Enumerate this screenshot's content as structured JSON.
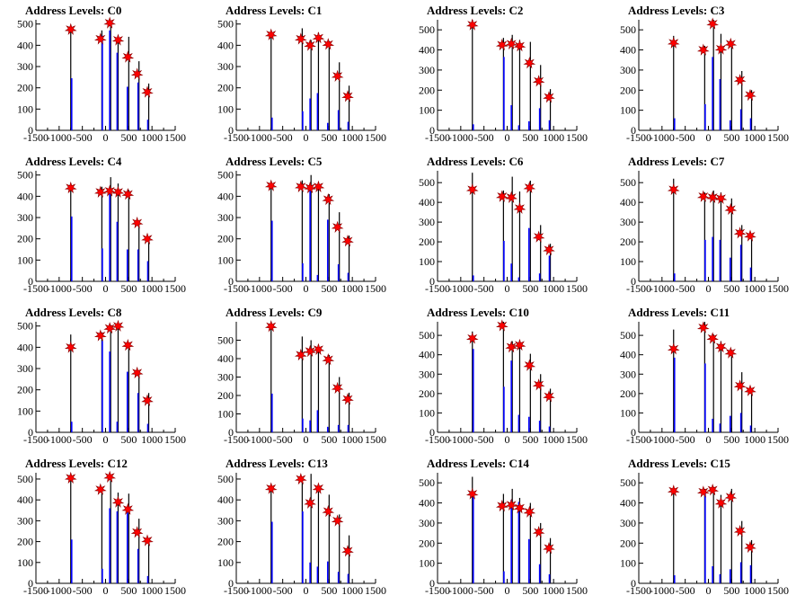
{
  "x_ticks": [
    -1500,
    -1000,
    -500,
    0,
    500,
    1000,
    1500
  ],
  "x_tick_labels": [
    "-1500",
    "-1000",
    "-500",
    "0",
    "500",
    "1000",
    "1500"
  ],
  "colors": {
    "black_hist": "#000000",
    "blue_hist": "#0000ff",
    "marker": "#ff0000",
    "marker_edge": "#8b0000"
  },
  "chart_data": [
    {
      "type": "bar",
      "title": "Address Levels: C0",
      "xlim": [
        -1500,
        1500
      ],
      "ylim": [
        0,
        520
      ],
      "yticks": [
        0,
        100,
        200,
        300,
        400,
        500
      ],
      "black": {
        "x": [
          -750,
          -80,
          110,
          270,
          500,
          720,
          930
        ],
        "values": [
          470,
          470,
          495,
          445,
          440,
          325,
          220
        ]
      },
      "blue": {
        "x": [
          -730,
          -70,
          90,
          250,
          470,
          700,
          910
        ],
        "values": [
          245,
          445,
          470,
          365,
          205,
          225,
          50
        ]
      },
      "peaks": {
        "x": [
          -750,
          -110,
          90,
          270,
          480,
          680,
          900
        ],
        "values": [
          475,
          430,
          505,
          425,
          345,
          265,
          180
        ]
      }
    },
    {
      "type": "bar",
      "title": "Address Levels: C1",
      "xlim": [
        -1500,
        1500
      ],
      "ylim": [
        0,
        520
      ],
      "yticks": [
        0,
        100,
        200,
        300,
        400,
        500
      ],
      "black": {
        "x": [
          -750,
          -80,
          110,
          270,
          500,
          720,
          930
        ],
        "values": [
          460,
          480,
          425,
          460,
          420,
          320,
          210
        ]
      },
      "blue": {
        "x": [
          -730,
          -70,
          90,
          250,
          470,
          700,
          910
        ],
        "values": [
          60,
          90,
          150,
          175,
          35,
          95,
          40
        ]
      },
      "peaks": {
        "x": [
          -750,
          -110,
          90,
          270,
          480,
          680,
          900
        ],
        "values": [
          450,
          430,
          400,
          435,
          405,
          255,
          160
        ]
      }
    },
    {
      "type": "bar",
      "title": "Address Levels: C2",
      "xlim": [
        -1500,
        1500
      ],
      "ylim": [
        0,
        550
      ],
      "yticks": [
        0,
        100,
        200,
        300,
        400,
        500
      ],
      "black": {
        "x": [
          -750,
          -80,
          110,
          270,
          500,
          720,
          930
        ],
        "values": [
          550,
          460,
          475,
          450,
          440,
          325,
          205
        ]
      },
      "blue": {
        "x": [
          -730,
          -70,
          90,
          250,
          470,
          700,
          910
        ],
        "values": [
          30,
          365,
          125,
          25,
          45,
          110,
          50
        ]
      },
      "peaks": {
        "x": [
          -750,
          -110,
          90,
          270,
          480,
          680,
          900
        ],
        "values": [
          525,
          425,
          430,
          420,
          335,
          245,
          165
        ]
      }
    },
    {
      "type": "bar",
      "title": "Address Levels: C3",
      "xlim": [
        -1500,
        1500
      ],
      "ylim": [
        0,
        550
      ],
      "yticks": [
        0,
        100,
        200,
        300,
        400,
        500
      ],
      "black": {
        "x": [
          -750,
          -80,
          110,
          270,
          500,
          720,
          930
        ],
        "values": [
          470,
          420,
          550,
          480,
          440,
          295,
          200
        ]
      },
      "blue": {
        "x": [
          -730,
          -70,
          90,
          250,
          470,
          700,
          910
        ],
        "values": [
          60,
          130,
          365,
          255,
          50,
          105,
          60
        ]
      },
      "peaks": {
        "x": [
          -750,
          -110,
          90,
          270,
          480,
          680,
          900
        ],
        "values": [
          435,
          400,
          530,
          405,
          430,
          250,
          175
        ]
      }
    },
    {
      "type": "bar",
      "title": "Address Levels: C4",
      "xlim": [
        -1500,
        1500
      ],
      "ylim": [
        0,
        520
      ],
      "yticks": [
        0,
        100,
        200,
        300,
        400,
        500
      ],
      "black": {
        "x": [
          -750,
          -80,
          110,
          270,
          500,
          720,
          930
        ],
        "values": [
          450,
          445,
          490,
          460,
          430,
          285,
          205
        ]
      },
      "blue": {
        "x": [
          -730,
          -70,
          90,
          250,
          470,
          700,
          910
        ],
        "values": [
          305,
          155,
          430,
          280,
          150,
          150,
          95
        ]
      },
      "peaks": {
        "x": [
          -750,
          -110,
          90,
          270,
          480,
          680,
          900
        ],
        "values": [
          440,
          420,
          425,
          420,
          410,
          275,
          200
        ]
      }
    },
    {
      "type": "bar",
      "title": "Address Levels: C5",
      "xlim": [
        -1500,
        1500
      ],
      "ylim": [
        0,
        520
      ],
      "yticks": [
        0,
        100,
        200,
        300,
        400,
        500
      ],
      "black": {
        "x": [
          -750,
          -80,
          110,
          270,
          500,
          720,
          930
        ],
        "values": [
          470,
          475,
          500,
          460,
          410,
          325,
          215
        ]
      },
      "blue": {
        "x": [
          -730,
          -70,
          90,
          250,
          470,
          700,
          910
        ],
        "values": [
          285,
          85,
          455,
          30,
          290,
          80,
          40
        ]
      },
      "peaks": {
        "x": [
          -750,
          -110,
          90,
          270,
          480,
          680,
          900
        ],
        "values": [
          450,
          445,
          440,
          445,
          385,
          255,
          190
        ]
      }
    },
    {
      "type": "bar",
      "title": "Address Levels: C6",
      "xlim": [
        -1500,
        1500
      ],
      "ylim": [
        0,
        560
      ],
      "yticks": [
        0,
        100,
        200,
        300,
        400,
        500
      ],
      "black": {
        "x": [
          -750,
          -80,
          110,
          270,
          500,
          720,
          930
        ],
        "values": [
          550,
          460,
          530,
          455,
          510,
          285,
          190
        ]
      },
      "blue": {
        "x": [
          -730,
          -70,
          90,
          250,
          470,
          700,
          910
        ],
        "values": [
          30,
          205,
          90,
          20,
          270,
          40,
          130
        ]
      },
      "peaks": {
        "x": [
          -750,
          -110,
          90,
          270,
          480,
          680,
          900
        ],
        "values": [
          465,
          430,
          425,
          370,
          475,
          225,
          160
        ]
      }
    },
    {
      "type": "bar",
      "title": "Address Levels: C7",
      "xlim": [
        -1500,
        1500
      ],
      "ylim": [
        0,
        560
      ],
      "yticks": [
        0,
        100,
        200,
        300,
        400,
        500
      ],
      "black": {
        "x": [
          -750,
          -80,
          110,
          270,
          500,
          720,
          930
        ],
        "values": [
          520,
          450,
          460,
          450,
          420,
          285,
          225
        ]
      },
      "blue": {
        "x": [
          -730,
          -70,
          90,
          250,
          470,
          700,
          910
        ],
        "values": [
          40,
          210,
          225,
          210,
          120,
          185,
          70
        ]
      },
      "peaks": {
        "x": [
          -750,
          -110,
          90,
          270,
          480,
          680,
          900
        ],
        "values": [
          465,
          430,
          425,
          420,
          365,
          245,
          230
        ]
      }
    },
    {
      "type": "bar",
      "title": "Address Levels: C8",
      "xlim": [
        -1500,
        1500
      ],
      "ylim": [
        0,
        520
      ],
      "yticks": [
        0,
        100,
        200,
        300,
        400,
        500
      ],
      "black": {
        "x": [
          -750,
          -80,
          110,
          270,
          500,
          720,
          930
        ],
        "values": [
          460,
          470,
          505,
          505,
          420,
          290,
          185
        ]
      },
      "blue": {
        "x": [
          -730,
          -70,
          90,
          250,
          470,
          700,
          910
        ],
        "values": [
          50,
          430,
          380,
          50,
          285,
          185,
          40
        ]
      },
      "peaks": {
        "x": [
          -750,
          -110,
          90,
          270,
          480,
          680,
          900
        ],
        "values": [
          400,
          455,
          490,
          500,
          410,
          280,
          150
        ]
      }
    },
    {
      "type": "bar",
      "title": "Address Levels: C9",
      "xlim": [
        -1500,
        1500
      ],
      "ylim": [
        0,
        600
      ],
      "yticks": [
        0,
        100,
        200,
        300,
        400,
        500
      ],
      "black": {
        "x": [
          -750,
          -80,
          110,
          270,
          500,
          720,
          930
        ],
        "values": [
          590,
          520,
          500,
          475,
          420,
          300,
          215
        ]
      },
      "blue": {
        "x": [
          -730,
          -70,
          90,
          250,
          470,
          700,
          910
        ],
        "values": [
          210,
          75,
          65,
          120,
          30,
          40,
          40
        ]
      },
      "peaks": {
        "x": [
          -750,
          -110,
          90,
          270,
          480,
          680,
          900
        ],
        "values": [
          575,
          420,
          440,
          450,
          395,
          240,
          180
        ]
      }
    },
    {
      "type": "bar",
      "title": "Address Levels: C10",
      "xlim": [
        -1500,
        1500
      ],
      "ylim": [
        0,
        570
      ],
      "yticks": [
        0,
        100,
        200,
        300,
        400,
        500
      ],
      "black": {
        "x": [
          -750,
          -80,
          110,
          270,
          500,
          720,
          930
        ],
        "values": [
          520,
          570,
          470,
          455,
          405,
          300,
          225
        ]
      },
      "blue": {
        "x": [
          -730,
          -70,
          90,
          250,
          470,
          700,
          910
        ],
        "values": [
          430,
          235,
          370,
          90,
          80,
          60,
          30
        ]
      },
      "peaks": {
        "x": [
          -750,
          -110,
          90,
          270,
          480,
          680,
          900
        ],
        "values": [
          485,
          550,
          440,
          450,
          345,
          245,
          185
        ]
      }
    },
    {
      "type": "bar",
      "title": "Address Levels: C11",
      "xlim": [
        -1500,
        1500
      ],
      "ylim": [
        0,
        570
      ],
      "yticks": [
        0,
        100,
        200,
        300,
        400,
        500
      ],
      "black": {
        "x": [
          -750,
          -80,
          110,
          270,
          500,
          720,
          930
        ],
        "values": [
          530,
          570,
          505,
          470,
          425,
          310,
          225
        ]
      },
      "blue": {
        "x": [
          -730,
          -70,
          90,
          250,
          470,
          700,
          910
        ],
        "values": [
          385,
          355,
          70,
          45,
          85,
          100,
          35
        ]
      },
      "peaks": {
        "x": [
          -750,
          -110,
          90,
          270,
          480,
          680,
          900
        ],
        "values": [
          430,
          540,
          485,
          440,
          410,
          240,
          215
        ]
      }
    },
    {
      "type": "bar",
      "title": "Address Levels: C12",
      "xlim": [
        -1500,
        1500
      ],
      "ylim": [
        0,
        530
      ],
      "yticks": [
        0,
        100,
        200,
        300,
        400,
        500
      ],
      "black": {
        "x": [
          -750,
          -80,
          110,
          270,
          500,
          720,
          930
        ],
        "values": [
          510,
          460,
          520,
          435,
          430,
          310,
          215
        ]
      },
      "blue": {
        "x": [
          -730,
          -70,
          90,
          250,
          470,
          700,
          910
        ],
        "values": [
          210,
          70,
          360,
          345,
          345,
          165,
          35
        ]
      },
      "peaks": {
        "x": [
          -750,
          -110,
          90,
          270,
          480,
          680,
          900
        ],
        "values": [
          505,
          450,
          510,
          390,
          355,
          245,
          205
        ]
      }
    },
    {
      "type": "bar",
      "title": "Address Levels: C13",
      "xlim": [
        -1500,
        1500
      ],
      "ylim": [
        0,
        530
      ],
      "yticks": [
        0,
        100,
        200,
        300,
        400,
        500
      ],
      "black": {
        "x": [
          -750,
          -80,
          110,
          270,
          500,
          720,
          930
        ],
        "values": [
          465,
          485,
          525,
          440,
          425,
          330,
          230
        ]
      },
      "blue": {
        "x": [
          -730,
          -70,
          90,
          250,
          470,
          700,
          910
        ],
        "values": [
          295,
          345,
          100,
          80,
          105,
          55,
          45
        ]
      },
      "peaks": {
        "x": [
          -750,
          -110,
          90,
          270,
          480,
          680,
          900
        ],
        "values": [
          455,
          500,
          385,
          455,
          345,
          300,
          155
        ]
      }
    },
    {
      "type": "bar",
      "title": "Address Levels: C14",
      "xlim": [
        -1500,
        1500
      ],
      "ylim": [
        0,
        550
      ],
      "yticks": [
        0,
        100,
        200,
        300,
        400,
        500
      ],
      "black": {
        "x": [
          -750,
          -80,
          110,
          270,
          500,
          720,
          930
        ],
        "values": [
          530,
          445,
          470,
          425,
          400,
          300,
          225
        ]
      },
      "blue": {
        "x": [
          -730,
          -70,
          90,
          250,
          470,
          700,
          910
        ],
        "values": [
          430,
          60,
          415,
          405,
          220,
          95,
          45
        ]
      },
      "peaks": {
        "x": [
          -750,
          -110,
          90,
          270,
          480,
          680,
          900
        ],
        "values": [
          445,
          385,
          390,
          375,
          355,
          255,
          175
        ]
      }
    },
    {
      "type": "bar",
      "title": "Address Levels: C15",
      "xlim": [
        -1500,
        1500
      ],
      "ylim": [
        0,
        550
      ],
      "yticks": [
        0,
        100,
        200,
        300,
        400,
        500
      ],
      "black": {
        "x": [
          -750,
          -80,
          110,
          270,
          500,
          720,
          930
        ],
        "values": [
          470,
          470,
          480,
          440,
          470,
          310,
          215
        ]
      },
      "blue": {
        "x": [
          -730,
          -70,
          90,
          250,
          470,
          700,
          910
        ],
        "values": [
          40,
          455,
          85,
          45,
          70,
          105,
          90
        ]
      },
      "peaks": {
        "x": [
          -750,
          -110,
          90,
          270,
          480,
          680,
          900
        ],
        "values": [
          460,
          455,
          465,
          400,
          430,
          260,
          180
        ]
      }
    }
  ]
}
